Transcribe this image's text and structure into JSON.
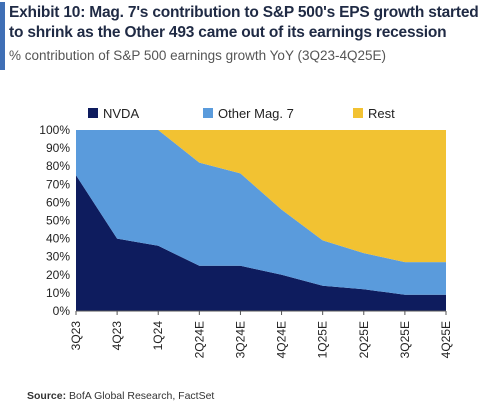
{
  "header": {
    "title": "Exhibit 10: Mag. 7's contribution to S&P 500's EPS growth started to shrink as the Other 493 came out of its earnings recession",
    "subtitle": "% contribution of S&P 500 earnings growth YoY (3Q23-4Q25E)",
    "accent_color": "#3f6fb5"
  },
  "footer": {
    "source_label": "Source:",
    "source_text": "BofA Global Research, FactSet"
  },
  "chart_data": {
    "type": "area",
    "stacked": true,
    "categories": [
      "3Q23",
      "4Q23",
      "1Q24",
      "2Q24E",
      "3Q24E",
      "4Q24E",
      "1Q25E",
      "2Q25E",
      "3Q25E",
      "4Q25E"
    ],
    "series": [
      {
        "name": "NVDA",
        "color": "#0e1c5e",
        "values": [
          75,
          40,
          36,
          25,
          25,
          20,
          14,
          12,
          9,
          9
        ]
      },
      {
        "name": "Other Mag. 7",
        "color": "#5a9bdc",
        "values": [
          25,
          60,
          64,
          57,
          51,
          36,
          25,
          20,
          18,
          18
        ]
      },
      {
        "name": "Rest",
        "color": "#f2c232",
        "values": [
          0,
          0,
          0,
          18,
          24,
          44,
          61,
          68,
          73,
          73
        ]
      }
    ],
    "ylim": [
      0,
      100
    ],
    "yticks": [
      "0%",
      "10%",
      "20%",
      "30%",
      "40%",
      "50%",
      "60%",
      "70%",
      "80%",
      "90%",
      "100%"
    ],
    "legend_position": "top",
    "grid": false,
    "xlabel": "",
    "ylabel": ""
  }
}
